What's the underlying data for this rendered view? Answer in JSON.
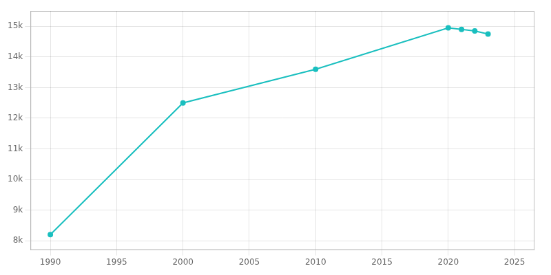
{
  "chart_data": {
    "type": "line",
    "x": [
      1990,
      2000,
      2010,
      2020,
      2021,
      2022,
      2023
    ],
    "values": [
      8200,
      12500,
      13600,
      14950,
      14900,
      14850,
      14750
    ],
    "color": "#1abfbf",
    "marker": "circle",
    "xlim": [
      1988.5,
      2026.5
    ],
    "xticks": [
      1990,
      1995,
      2000,
      2005,
      2010,
      2015,
      2020,
      2025
    ],
    "ylim": [
      7700,
      15500
    ],
    "yticks": [
      {
        "value": 8000,
        "label": "8k"
      },
      {
        "value": 9000,
        "label": "9k"
      },
      {
        "value": 10000,
        "label": "10k"
      },
      {
        "value": 11000,
        "label": "11k"
      },
      {
        "value": 12000,
        "label": "12k"
      },
      {
        "value": 13000,
        "label": "13k"
      },
      {
        "value": 14000,
        "label": "14k"
      },
      {
        "value": 15000,
        "label": "15k"
      }
    ],
    "grid": true
  }
}
